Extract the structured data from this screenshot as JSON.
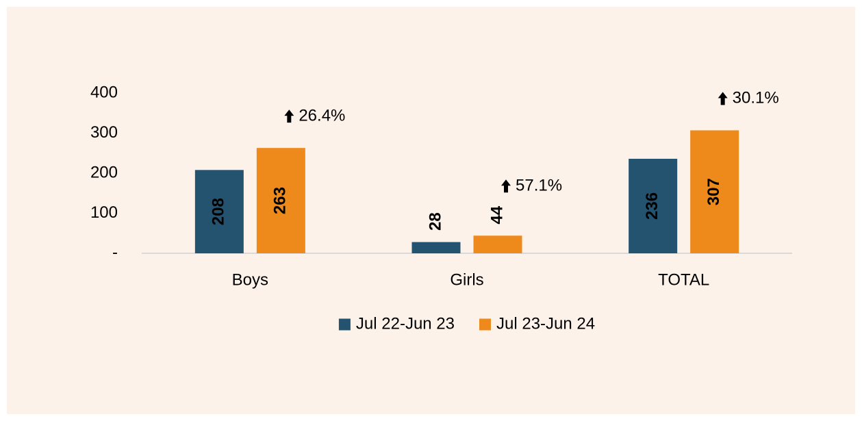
{
  "chart_data": {
    "type": "bar",
    "categories": [
      "Boys",
      "Girls",
      "TOTAL"
    ],
    "series": [
      {
        "name": "Jul 22-Jun 23",
        "color": "#24536f",
        "values": [
          208,
          28,
          236
        ]
      },
      {
        "name": "Jul 23-Jun 24",
        "color": "#ee8a1c",
        "values": [
          263,
          44,
          307
        ]
      }
    ],
    "annotations": [
      "26.4%",
      "57.1%",
      "30.1%"
    ],
    "ylim": [
      0,
      400
    ],
    "yticks": [
      {
        "value": 0,
        "label": "-"
      },
      100,
      200,
      300,
      400
    ],
    "grid": false,
    "legend": "bottom"
  }
}
